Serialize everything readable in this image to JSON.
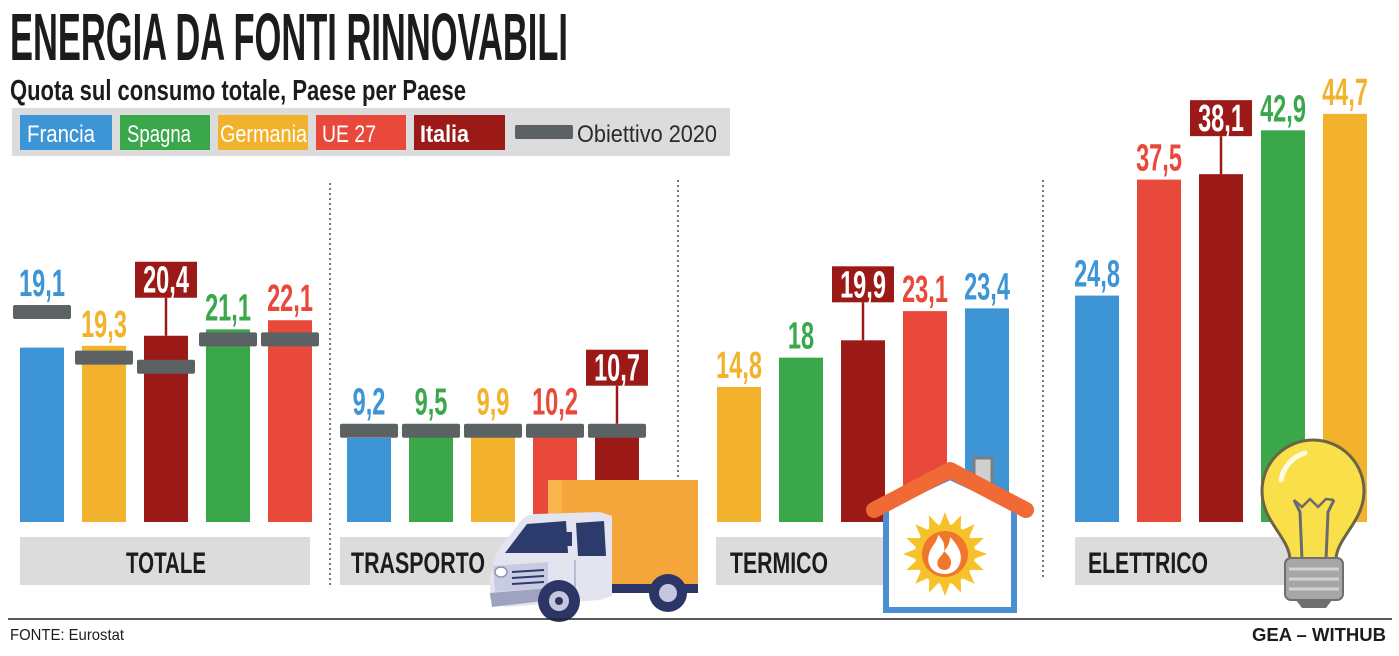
{
  "chart_data": {
    "type": "bar",
    "title": "ENERGIA DA FONTI RINNOVABILI",
    "subtitle": "Quota sul consumo totale, Paese per Paese",
    "categories": [
      "TOTALE",
      "TRASPORTO",
      "TERMICO",
      "ELETTRICO"
    ],
    "series": [
      {
        "name": "Francia",
        "color": "#3d95d6",
        "values": [
          19.1,
          9.2,
          23.4,
          24.8
        ],
        "labels": [
          "19,1",
          "9,2",
          "23,4",
          "24,8"
        ],
        "target": [
          23,
          10,
          null,
          null
        ]
      },
      {
        "name": "Spagna",
        "color": "#3aa84a",
        "values": [
          21.1,
          9.5,
          18,
          42.9
        ],
        "labels": [
          "21,1",
          "9,5",
          "18",
          "42,9"
        ],
        "target": [
          20,
          10,
          null,
          null
        ]
      },
      {
        "name": "Germania",
        "color": "#f2b22c",
        "values": [
          19.3,
          9.9,
          14.8,
          44.7
        ],
        "labels": [
          "19,3",
          "9,9",
          "14,8",
          "44,7"
        ],
        "target": [
          18,
          10,
          null,
          null
        ]
      },
      {
        "name": "UE 27",
        "color": "#e8493b",
        "values": [
          22.1,
          10.2,
          23.1,
          37.5
        ],
        "labels": [
          "22,1",
          "10,2",
          "23,1",
          "37,5"
        ],
        "target": [
          20,
          10,
          null,
          null
        ]
      },
      {
        "name": "Italia",
        "color": "#9b1a18",
        "highlight": true,
        "values": [
          20.4,
          10.7,
          19.9,
          38.1
        ],
        "labels": [
          "20,4",
          "10,7",
          "19,9",
          "38,1"
        ],
        "target": [
          17,
          10,
          null,
          null
        ]
      }
    ],
    "target_series": {
      "name": "Obiettivo 2020",
      "color": "#5c6164"
    },
    "legend_position": "top-left",
    "grid": false
  },
  "footer": {
    "source": "FONTE: Eurostat",
    "credit": "GEA – WITHUB"
  },
  "illustrations": {
    "trasporto": "truck-icon",
    "termico": "house-flame-icon",
    "elettrico": "lightbulb-icon"
  }
}
